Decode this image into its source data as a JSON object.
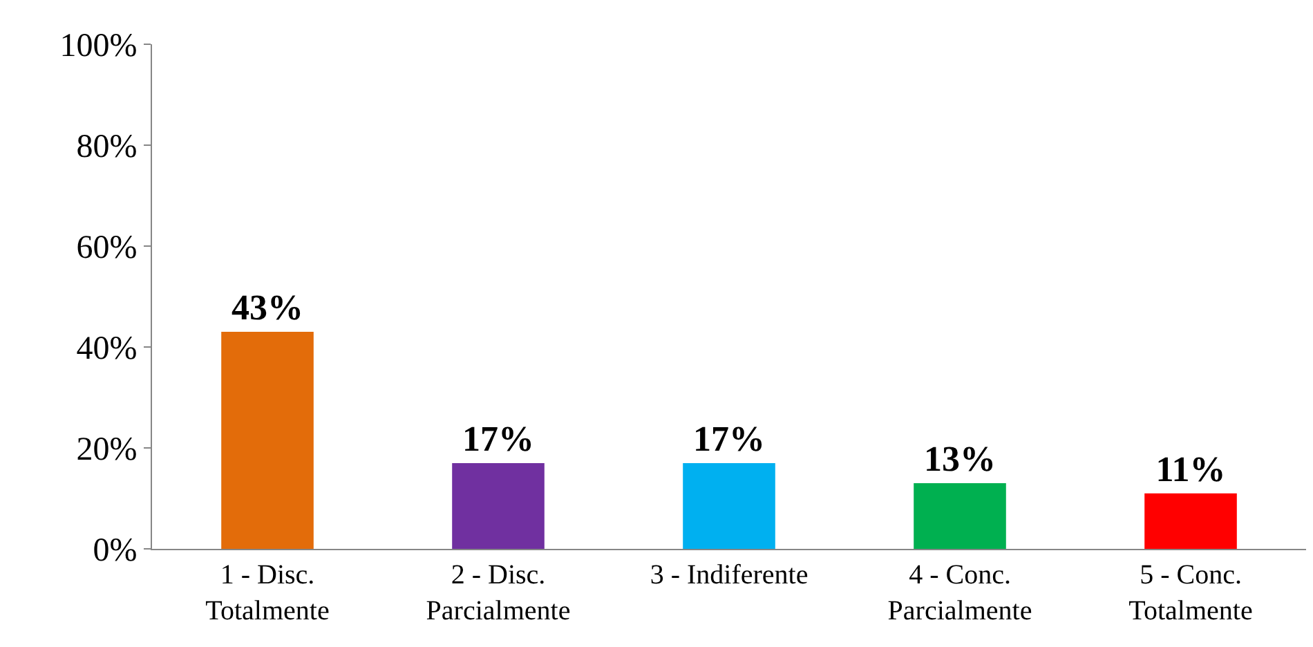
{
  "chart_data": {
    "type": "bar",
    "categories": [
      "1 - Disc.\nTotalmente",
      "2 - Disc.\nParcialmente",
      "3 - Indiferente",
      "4 - Conc.\nParcialmente",
      "5 - Conc.\nTotalmente"
    ],
    "values": [
      43,
      17,
      17,
      13,
      11
    ],
    "value_labels": [
      "43%",
      "17%",
      "17%",
      "13%",
      "11%"
    ],
    "colors": [
      "#e36c0a",
      "#7030a0",
      "#00b0f0",
      "#00b050",
      "#ff0000"
    ],
    "ylim": [
      0,
      100
    ],
    "yticks": [
      {
        "value": 0,
        "label": "0%"
      },
      {
        "value": 20,
        "label": "20%"
      },
      {
        "value": 40,
        "label": "40%"
      },
      {
        "value": 60,
        "label": "60%"
      },
      {
        "value": 80,
        "label": "80%"
      },
      {
        "value": 100,
        "label": "100%"
      }
    ],
    "legend": false
  }
}
